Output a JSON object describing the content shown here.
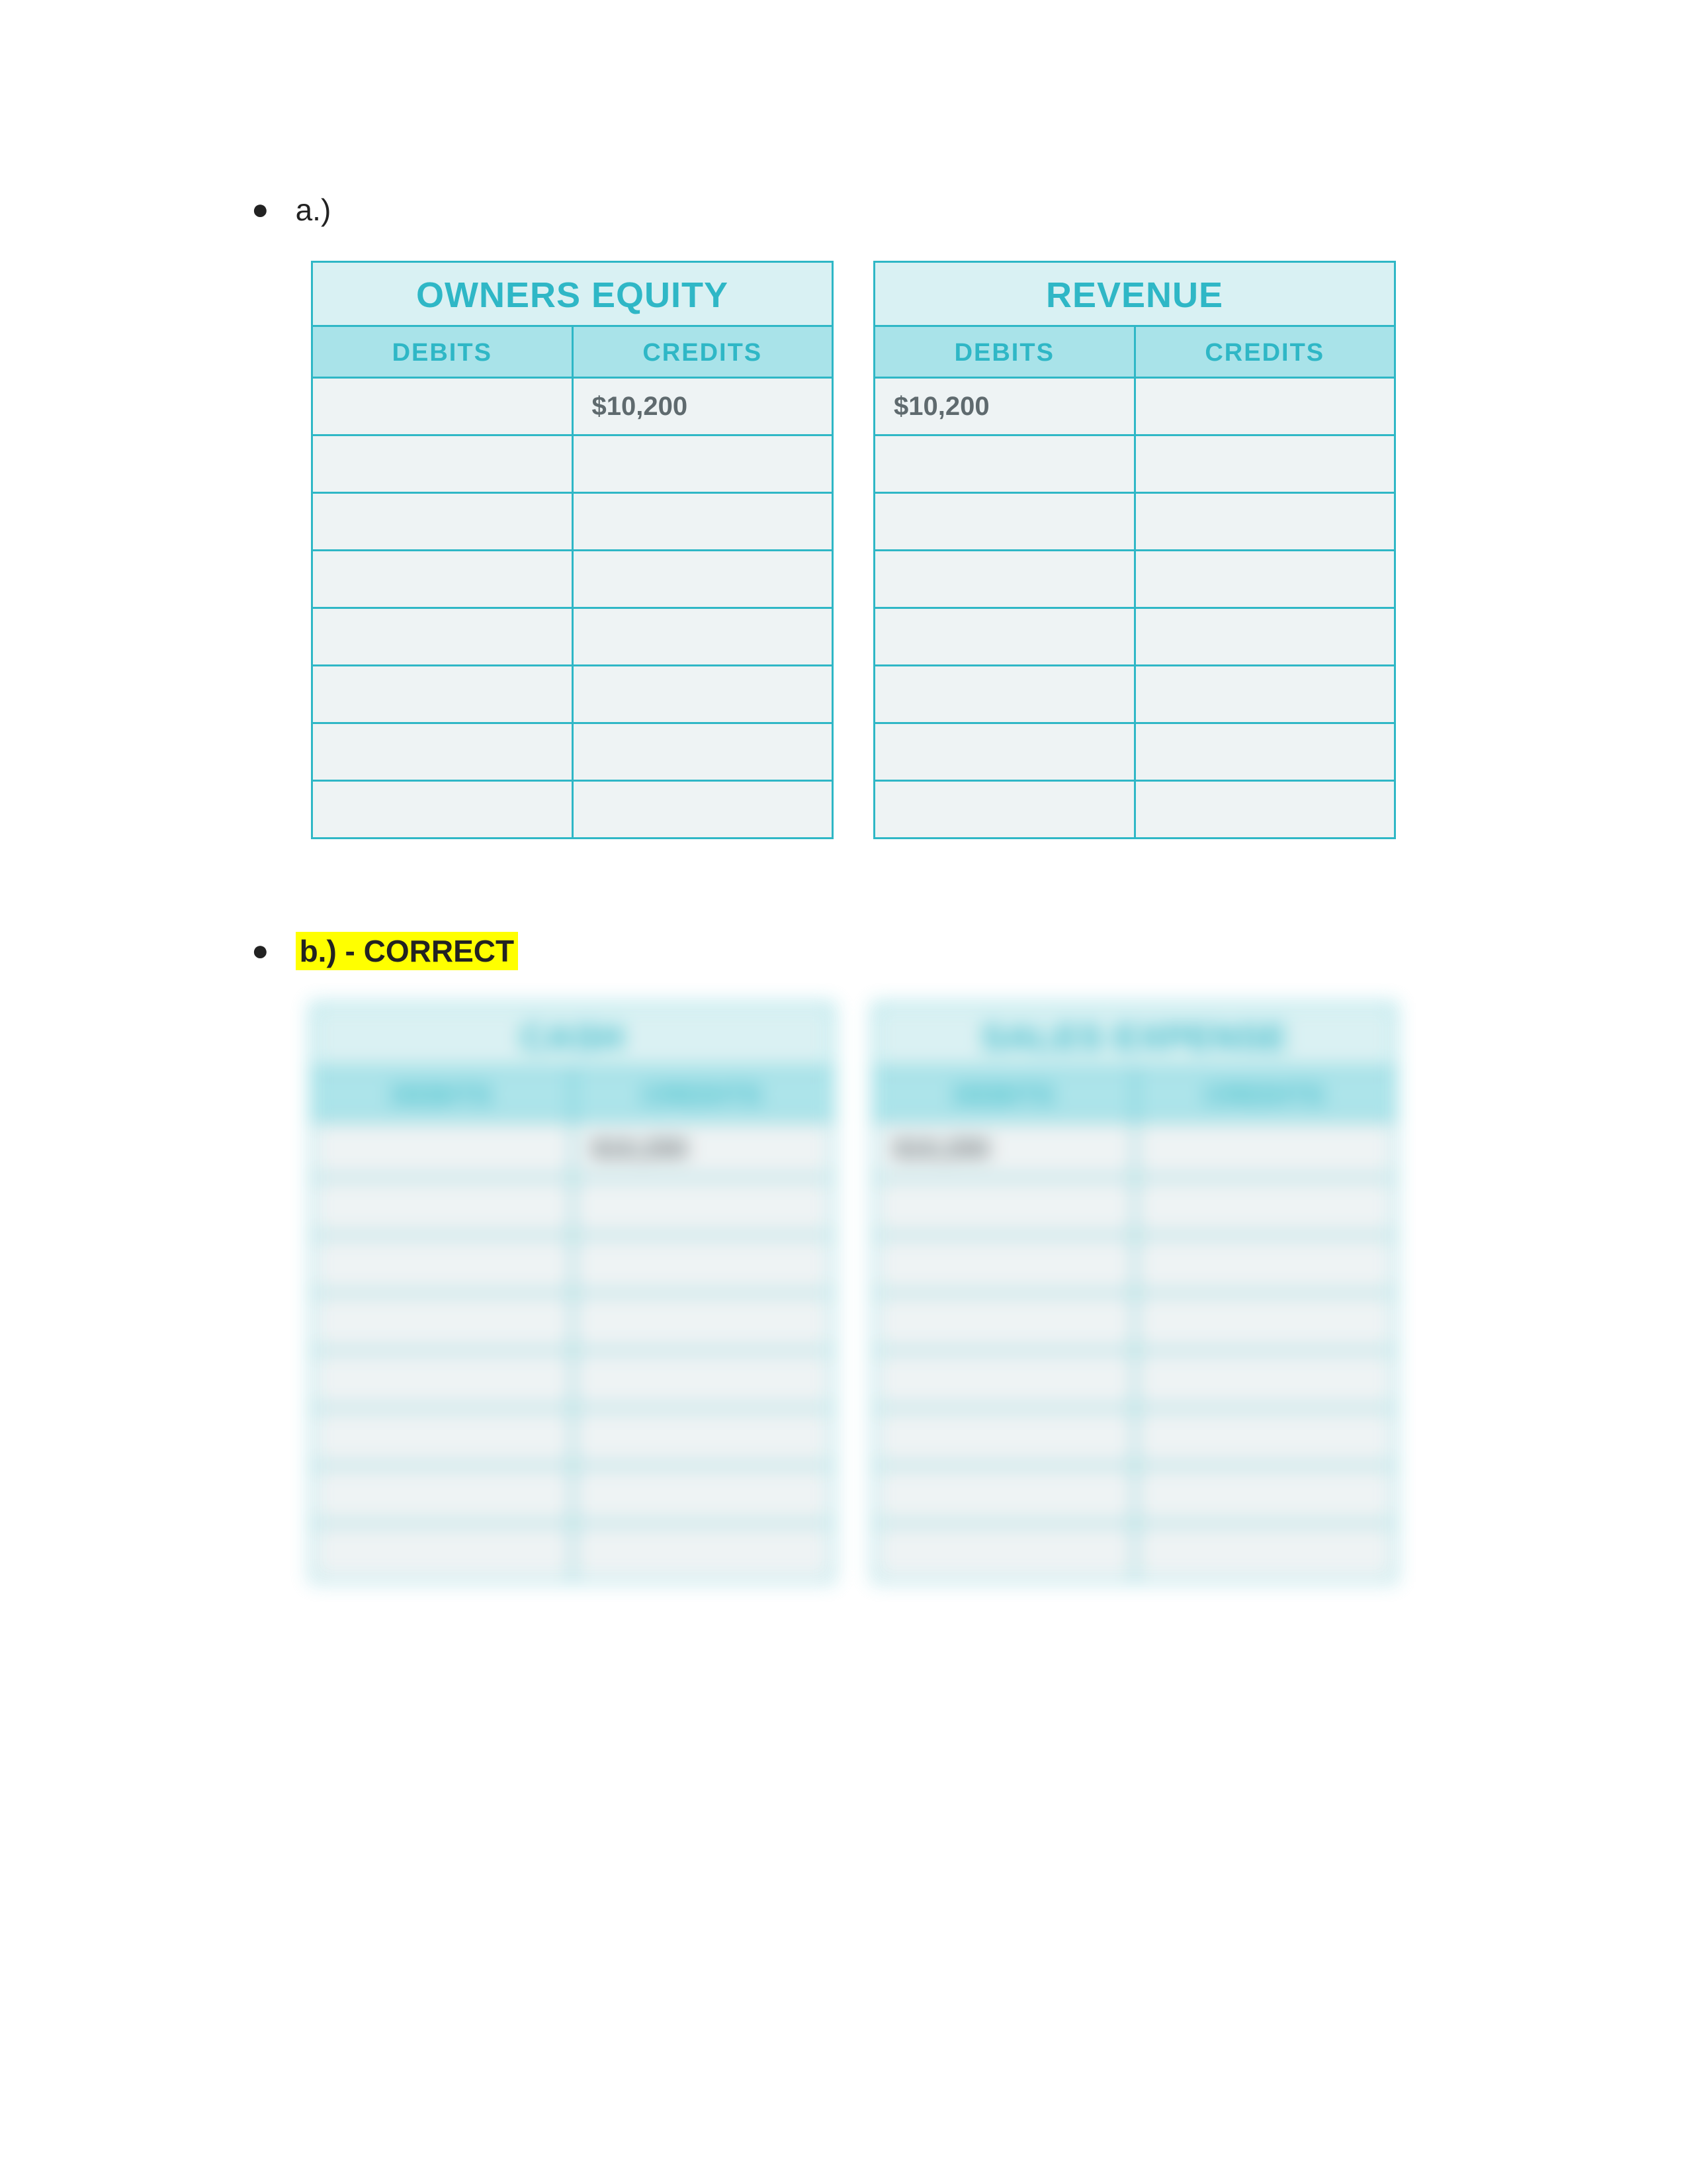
{
  "colors": {
    "border": "#2fb7c6",
    "title_bg": "#d9f1f3",
    "title_text": "#2fb7c6",
    "header_bg": "#a9e3e9",
    "header_text": "#2fb7c6",
    "row_bg": "#eef3f4",
    "row_text": "#5f6a6e",
    "highlight": "#ffff00",
    "bullet": "#222222"
  },
  "rows_per_table": 8,
  "section_a": {
    "bullet_label": "a.)",
    "tables": [
      {
        "title": "OWNERS EQUITY",
        "headers": [
          "DEBITS",
          "CREDITS"
        ],
        "rows": [
          [
            "",
            "$10,200"
          ],
          [
            "",
            ""
          ],
          [
            "",
            ""
          ],
          [
            "",
            ""
          ],
          [
            "",
            ""
          ],
          [
            "",
            ""
          ],
          [
            "",
            ""
          ],
          [
            "",
            ""
          ]
        ]
      },
      {
        "title": "REVENUE",
        "headers": [
          "DEBITS",
          "CREDITS"
        ],
        "rows": [
          [
            "$10,200",
            ""
          ],
          [
            "",
            ""
          ],
          [
            "",
            ""
          ],
          [
            "",
            ""
          ],
          [
            "",
            ""
          ],
          [
            "",
            ""
          ],
          [
            "",
            ""
          ],
          [
            "",
            ""
          ]
        ]
      }
    ]
  },
  "section_b": {
    "bullet_label": "b.) - CORRECT",
    "highlighted": true,
    "blurred": true,
    "tables": [
      {
        "title": "CASH",
        "headers": [
          "DEBITS",
          "CREDITS"
        ],
        "rows": [
          [
            "",
            "$10,200"
          ],
          [
            "",
            ""
          ],
          [
            "",
            ""
          ],
          [
            "",
            ""
          ],
          [
            "",
            ""
          ],
          [
            "",
            ""
          ],
          [
            "",
            ""
          ],
          [
            "",
            ""
          ]
        ]
      },
      {
        "title": "SALES EXPENSE",
        "headers": [
          "DEBITS",
          "CREDITS"
        ],
        "rows": [
          [
            "$10,200",
            ""
          ],
          [
            "",
            ""
          ],
          [
            "",
            ""
          ],
          [
            "",
            ""
          ],
          [
            "",
            ""
          ],
          [
            "",
            ""
          ],
          [
            "",
            ""
          ],
          [
            "",
            ""
          ]
        ]
      }
    ]
  }
}
